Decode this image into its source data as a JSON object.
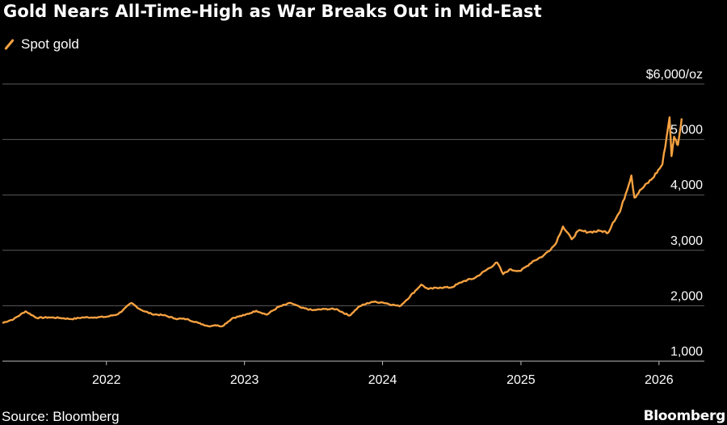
{
  "title": "Gold Nears All-Time-High as War Breaks Out in Mid-East",
  "legend": {
    "label": "Spot gold"
  },
  "source": "Source: Bloomberg",
  "brand": "Bloomberg",
  "colors": {
    "series": "#f6a140",
    "grid": "#5a5a5a",
    "background": "#000000"
  },
  "chart_data": {
    "type": "line",
    "series": [
      {
        "name": "Spot gold",
        "points": [
          [
            "2021-04-01",
            1690
          ],
          [
            "2021-05-01",
            1760
          ],
          [
            "2021-06-01",
            1900
          ],
          [
            "2021-07-01",
            1780
          ],
          [
            "2021-08-01",
            1790
          ],
          [
            "2021-09-01",
            1780
          ],
          [
            "2021-10-01",
            1760
          ],
          [
            "2021-11-01",
            1790
          ],
          [
            "2021-12-01",
            1790
          ],
          [
            "2022-01-01",
            1800
          ],
          [
            "2022-02-01",
            1850
          ],
          [
            "2022-03-08",
            2050
          ],
          [
            "2022-04-01",
            1930
          ],
          [
            "2022-05-01",
            1850
          ],
          [
            "2022-06-01",
            1830
          ],
          [
            "2022-07-01",
            1770
          ],
          [
            "2022-08-01",
            1760
          ],
          [
            "2022-09-01",
            1690
          ],
          [
            "2022-09-28",
            1630
          ],
          [
            "2022-10-15",
            1650
          ],
          [
            "2022-11-03",
            1630
          ],
          [
            "2022-12-01",
            1780
          ],
          [
            "2023-01-01",
            1830
          ],
          [
            "2023-02-01",
            1910
          ],
          [
            "2023-03-01",
            1840
          ],
          [
            "2023-04-01",
            1980
          ],
          [
            "2023-05-04",
            2050
          ],
          [
            "2023-06-01",
            1960
          ],
          [
            "2023-07-01",
            1920
          ],
          [
            "2023-08-01",
            1940
          ],
          [
            "2023-09-01",
            1940
          ],
          [
            "2023-10-05",
            1820
          ],
          [
            "2023-11-01",
            1990
          ],
          [
            "2023-12-04",
            2070
          ],
          [
            "2024-01-01",
            2060
          ],
          [
            "2024-02-15",
            1990
          ],
          [
            "2024-03-01",
            2080
          ],
          [
            "2024-04-12",
            2380
          ],
          [
            "2024-05-01",
            2300
          ],
          [
            "2024-06-01",
            2330
          ],
          [
            "2024-07-01",
            2330
          ],
          [
            "2024-08-01",
            2440
          ],
          [
            "2024-09-01",
            2500
          ],
          [
            "2024-10-30",
            2780
          ],
          [
            "2024-11-15",
            2570
          ],
          [
            "2024-12-01",
            2650
          ],
          [
            "2025-01-01",
            2630
          ],
          [
            "2025-02-01",
            2800
          ],
          [
            "2025-03-01",
            2900
          ],
          [
            "2025-04-01",
            3100
          ],
          [
            "2025-04-22",
            3430
          ],
          [
            "2025-05-15",
            3200
          ],
          [
            "2025-06-01",
            3350
          ],
          [
            "2025-07-01",
            3330
          ],
          [
            "2025-08-01",
            3350
          ],
          [
            "2025-08-20",
            3320
          ],
          [
            "2025-09-01",
            3500
          ],
          [
            "2025-09-20",
            3700
          ],
          [
            "2025-10-20",
            4350
          ],
          [
            "2025-10-28",
            3950
          ],
          [
            "2025-11-15",
            4100
          ],
          [
            "2025-12-15",
            4300
          ],
          [
            "2026-01-10",
            4550
          ],
          [
            "2026-01-29",
            5400
          ],
          [
            "2026-02-03",
            4700
          ],
          [
            "2026-02-10",
            5050
          ],
          [
            "2026-02-20",
            4900
          ],
          [
            "2026-03-02",
            5380
          ]
        ]
      }
    ],
    "x_type": "date",
    "xticks": [
      {
        "label": "2022",
        "date": "2022-01-01"
      },
      {
        "label": "2023",
        "date": "2023-01-01"
      },
      {
        "label": "2024",
        "date": "2024-01-01"
      },
      {
        "label": "2025",
        "date": "2025-01-01"
      },
      {
        "label": "2026",
        "date": "2026-01-01"
      }
    ],
    "yticks": [
      {
        "label": "1,000",
        "value": 1000
      },
      {
        "label": "2,000",
        "value": 2000
      },
      {
        "label": "3,000",
        "value": 3000
      },
      {
        "label": "4,000",
        "value": 4000
      },
      {
        "label": "5,000",
        "value": 5000
      },
      {
        "label": "$6,000/oz",
        "value": 6000
      }
    ],
    "xlim": [
      "2021-04-01",
      "2026-05-01"
    ],
    "ylim": [
      1000,
      6000
    ],
    "grid": {
      "horizontal": true,
      "vertical": false
    },
    "legend_position": "top-left"
  }
}
